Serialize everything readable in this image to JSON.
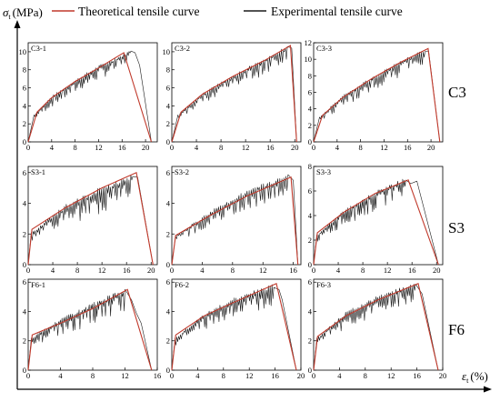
{
  "legend": {
    "theoretical": "Theoretical tensile curve",
    "experimental": "Experimental tensile curve",
    "theoretical_color": "#c0392b",
    "experimental_color": "#1a1a1a"
  },
  "axis": {
    "y_symbol": "σ",
    "y_sub": "t",
    "y_unit": "(MPa)",
    "x_symbol": "ε",
    "x_sub": "t",
    "x_unit": "(%)"
  },
  "rows": [
    "C3",
    "S3",
    "F6"
  ],
  "chart_data": [
    {
      "type": "line",
      "title": "C3-1",
      "xlim": [
        0,
        22
      ],
      "ylim": [
        0,
        11
      ],
      "xticks": [
        0,
        4,
        8,
        12,
        16,
        20
      ],
      "yticks": [
        0,
        2,
        4,
        6,
        8,
        10
      ],
      "theoretical": [
        [
          0,
          0
        ],
        [
          1.5,
          3.3
        ],
        [
          4,
          4.9
        ],
        [
          8,
          6.7
        ],
        [
          12,
          8.2
        ],
        [
          16.3,
          9.9
        ],
        [
          21,
          0
        ]
      ],
      "experimental_envelope": [
        [
          0,
          0
        ],
        [
          1,
          3.0
        ],
        [
          4,
          5.1
        ],
        [
          8,
          6.9
        ],
        [
          12,
          8.5
        ],
        [
          16,
          9.7
        ],
        [
          17.5,
          10.2
        ],
        [
          18.2,
          9.9
        ],
        [
          19,
          8.5
        ],
        [
          21,
          0
        ]
      ],
      "experimental_lower": [
        [
          1,
          2.5
        ],
        [
          4,
          3.8
        ],
        [
          8,
          5.3
        ],
        [
          12,
          6.8
        ],
        [
          16,
          8.0
        ],
        [
          17.5,
          9.3
        ]
      ]
    },
    {
      "type": "line",
      "title": "C3-2",
      "xlim": [
        0,
        21
      ],
      "ylim": [
        0,
        11
      ],
      "xticks": [
        0,
        4,
        8,
        12,
        16,
        20
      ],
      "yticks": [
        0,
        2,
        4,
        6,
        8,
        10
      ],
      "theoretical": [
        [
          0,
          0
        ],
        [
          1.5,
          3.3
        ],
        [
          5,
          5.3
        ],
        [
          10,
          7.3
        ],
        [
          15,
          9.0
        ],
        [
          19.3,
          10.7
        ],
        [
          20.3,
          0
        ]
      ],
      "experimental_envelope": [
        [
          0,
          0
        ],
        [
          1,
          3.0
        ],
        [
          5,
          5.4
        ],
        [
          10,
          7.5
        ],
        [
          15,
          9.3
        ],
        [
          18.8,
          10.7
        ],
        [
          19.5,
          10.4
        ],
        [
          20.3,
          0
        ]
      ],
      "experimental_lower": [
        [
          1,
          2.5
        ],
        [
          5,
          4.1
        ],
        [
          10,
          5.8
        ],
        [
          15,
          7.3
        ],
        [
          18.8,
          8.8
        ]
      ]
    },
    {
      "type": "line",
      "title": "C3-3",
      "xlim": [
        0,
        22
      ],
      "ylim": [
        0,
        12
      ],
      "xticks": [
        0,
        4,
        8,
        12,
        16,
        20
      ],
      "yticks": [
        0,
        2,
        4,
        6,
        8,
        10,
        12
      ],
      "theoretical": [
        [
          0,
          0
        ],
        [
          1.5,
          3.2
        ],
        [
          5,
          5.4
        ],
        [
          10,
          7.7
        ],
        [
          15,
          9.7
        ],
        [
          19.5,
          11.3
        ],
        [
          21.5,
          0
        ]
      ],
      "experimental_envelope": [
        [
          0,
          0
        ],
        [
          1,
          3.0
        ],
        [
          5,
          5.7
        ],
        [
          10,
          7.9
        ],
        [
          15,
          10.0
        ],
        [
          19,
          11.3
        ],
        [
          19.6,
          11.0
        ],
        [
          21.5,
          0
        ]
      ],
      "experimental_lower": [
        [
          1,
          2.4
        ],
        [
          5,
          4.1
        ],
        [
          10,
          6.0
        ],
        [
          15,
          7.9
        ],
        [
          19,
          9.3
        ]
      ]
    },
    {
      "type": "line",
      "title": "S3-1",
      "xlim": [
        0,
        21
      ],
      "ylim": [
        0,
        6.4
      ],
      "xticks": [
        0,
        4,
        8,
        12,
        16,
        20
      ],
      "yticks": [
        0,
        2,
        4,
        6
      ],
      "theoretical": [
        [
          0,
          0
        ],
        [
          0.6,
          2.3
        ],
        [
          6,
          3.7
        ],
        [
          12,
          5.0
        ],
        [
          17.6,
          6.0
        ],
        [
          20.3,
          0
        ]
      ],
      "experimental_envelope": [
        [
          0,
          0
        ],
        [
          0.5,
          2.1
        ],
        [
          6,
          3.9
        ],
        [
          12,
          5.1
        ],
        [
          17,
          5.9
        ],
        [
          17.8,
          5.7
        ],
        [
          20.3,
          0
        ]
      ],
      "experimental_lower": [
        [
          0.5,
          1.5
        ],
        [
          6,
          2.4
        ],
        [
          12,
          3.3
        ],
        [
          17,
          4.3
        ]
      ]
    },
    {
      "type": "line",
      "title": "S3-2",
      "xlim": [
        0,
        17
      ],
      "ylim": [
        0,
        6.4
      ],
      "xticks": [
        0,
        4,
        8,
        12,
        16
      ],
      "yticks": [
        0,
        2,
        4,
        6
      ],
      "theoretical": [
        [
          0,
          0
        ],
        [
          0.5,
          1.9
        ],
        [
          5,
          3.2
        ],
        [
          10,
          4.5
        ],
        [
          15.7,
          5.7
        ],
        [
          16.6,
          0
        ]
      ],
      "experimental_envelope": [
        [
          0,
          0
        ],
        [
          0.5,
          1.9
        ],
        [
          5,
          3.5
        ],
        [
          10,
          4.9
        ],
        [
          15.3,
          5.9
        ],
        [
          16,
          5.5
        ],
        [
          16.6,
          0
        ]
      ],
      "experimental_lower": [
        [
          0.5,
          1.4
        ],
        [
          5,
          2.4
        ],
        [
          10,
          3.5
        ],
        [
          15.3,
          4.4
        ]
      ]
    },
    {
      "type": "line",
      "title": "S3-3",
      "xlim": [
        0,
        21
      ],
      "ylim": [
        0,
        8
      ],
      "xticks": [
        0,
        4,
        8,
        12,
        16,
        20
      ],
      "yticks": [
        0,
        2,
        4,
        6,
        8
      ],
      "theoretical": [
        [
          0,
          0
        ],
        [
          0.6,
          2.6
        ],
        [
          5,
          4.3
        ],
        [
          10,
          5.8
        ],
        [
          15.4,
          6.9
        ],
        [
          20.3,
          0
        ]
      ],
      "experimental_envelope": [
        [
          0,
          0
        ],
        [
          0.5,
          2.4
        ],
        [
          5,
          4.5
        ],
        [
          10,
          6.0
        ],
        [
          15,
          7.1
        ],
        [
          15.8,
          6.6
        ],
        [
          16.8,
          6.8
        ],
        [
          20.3,
          0
        ]
      ],
      "experimental_lower": [
        [
          0.5,
          1.8
        ],
        [
          5,
          3.1
        ],
        [
          10,
          4.3
        ],
        [
          15,
          5.5
        ]
      ]
    },
    {
      "type": "line",
      "title": "F6-1",
      "xlim": [
        0,
        16
      ],
      "ylim": [
        0,
        6.2
      ],
      "xticks": [
        0,
        4,
        8,
        12,
        16
      ],
      "yticks": [
        0,
        2,
        4,
        6
      ],
      "theoretical": [
        [
          0,
          0
        ],
        [
          0.5,
          2.4
        ],
        [
          4,
          3.2
        ],
        [
          8,
          4.2
        ],
        [
          12.3,
          5.5
        ],
        [
          15.3,
          0
        ]
      ],
      "experimental_envelope": [
        [
          0,
          0
        ],
        [
          0.4,
          2.2
        ],
        [
          4,
          3.5
        ],
        [
          8,
          4.6
        ],
        [
          12,
          5.6
        ],
        [
          12.8,
          4.8
        ],
        [
          13.4,
          3.9
        ],
        [
          14,
          3.2
        ],
        [
          15.3,
          0
        ]
      ],
      "experimental_lower": [
        [
          0.4,
          1.6
        ],
        [
          4,
          2.3
        ],
        [
          8,
          3.0
        ],
        [
          12,
          3.9
        ]
      ]
    },
    {
      "type": "line",
      "title": "F6-2",
      "xlim": [
        0,
        20
      ],
      "ylim": [
        0,
        6.2
      ],
      "xticks": [
        0,
        4,
        8,
        12,
        16,
        20
      ],
      "yticks": [
        0,
        2,
        4,
        6
      ],
      "theoretical": [
        [
          0,
          0
        ],
        [
          0.6,
          2.4
        ],
        [
          5,
          3.7
        ],
        [
          10,
          4.7
        ],
        [
          16.2,
          5.9
        ],
        [
          19.3,
          0
        ]
      ],
      "experimental_envelope": [
        [
          0,
          0
        ],
        [
          0.5,
          2.2
        ],
        [
          5,
          3.9
        ],
        [
          10,
          5.0
        ],
        [
          15.8,
          5.9
        ],
        [
          16.6,
          5.5
        ],
        [
          17.1,
          4.8
        ],
        [
          19.3,
          0
        ]
      ],
      "experimental_lower": [
        [
          0.5,
          1.6
        ],
        [
          5,
          2.7
        ],
        [
          10,
          3.5
        ],
        [
          15.8,
          4.3
        ]
      ]
    },
    {
      "type": "line",
      "title": "F6-3",
      "xlim": [
        0,
        20
      ],
      "ylim": [
        0,
        6.2
      ],
      "xticks": [
        0,
        4,
        8,
        12,
        16,
        20
      ],
      "yticks": [
        0,
        2,
        4,
        6
      ],
      "theoretical": [
        [
          0,
          0
        ],
        [
          0.6,
          2.3
        ],
        [
          5,
          3.7
        ],
        [
          10,
          4.8
        ],
        [
          16.2,
          5.9
        ],
        [
          19.3,
          0
        ]
      ],
      "experimental_envelope": [
        [
          0,
          0
        ],
        [
          0.5,
          2.2
        ],
        [
          5,
          4.0
        ],
        [
          10,
          5.1
        ],
        [
          15.8,
          6.0
        ],
        [
          16.8,
          5.2
        ],
        [
          19.3,
          0
        ]
      ],
      "experimental_lower": [
        [
          0.5,
          1.6
        ],
        [
          5,
          2.8
        ],
        [
          10,
          3.7
        ],
        [
          15.8,
          4.5
        ]
      ]
    }
  ]
}
